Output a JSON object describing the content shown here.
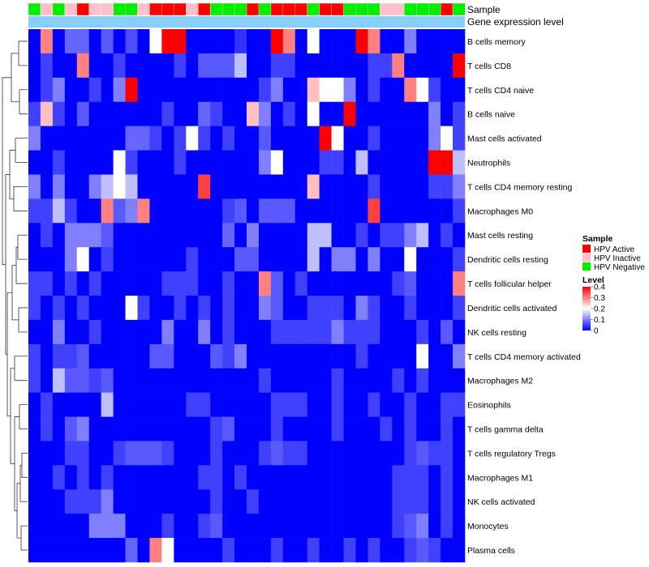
{
  "chart_data": {
    "type": "heatmap",
    "rows": [
      "B cells memory",
      "T cells CD8",
      "T cells CD4 naive",
      "B cells naive",
      "Mast cells activated",
      "Neutrophils",
      "T cells CD4 memory resting",
      "Macrophages M0",
      "Mast cells resting",
      "Dendritic cells resting",
      "T cells follicular helper",
      "Dendritic cells activated",
      "NK cells resting",
      "T cells CD4 memory activated",
      "Macrophages M2",
      "Eosinophils",
      "T cells gamma delta",
      "T cells regulatory  Tregs",
      "Macrophages M1",
      "NK cells activated",
      "Monocytes",
      "Plasma cells"
    ],
    "column_annotations": [
      {
        "name": "Sample",
        "categories": [
          "HPV Active",
          "HPV Inactive",
          "HPV Negative"
        ],
        "colors": [
          "#ff0000",
          "#ffc0cb",
          "#00ee00"
        ]
      },
      {
        "name": "Gene expression level",
        "color": "#87cefa"
      }
    ],
    "sample_groups": [
      "N",
      "I",
      "N",
      "I",
      "A",
      "I",
      "I",
      "N",
      "N",
      "I",
      "A",
      "A",
      "A",
      "I",
      "A",
      "N",
      "N",
      "N",
      "A",
      "N",
      "A",
      "A",
      "A",
      "N",
      "A",
      "A",
      "N",
      "N",
      "N",
      "I",
      "I",
      "N",
      "N",
      "N",
      "A",
      "N"
    ],
    "values": [
      [
        0.0,
        0.3,
        0.0,
        0.08,
        0.08,
        0.0,
        0.07,
        0.0,
        0.06,
        0.0,
        0.2,
        0.4,
        0.4,
        0.0,
        0.0,
        0.0,
        0.0,
        0.04,
        0.0,
        0.0,
        0.4,
        0.3,
        0.0,
        0.2,
        0.0,
        0.0,
        0.0,
        0.4,
        0.3,
        0.0,
        0.0,
        0.1,
        0.0,
        0.0,
        0.0,
        0.0
      ],
      [
        0.0,
        0.05,
        0.0,
        0.0,
        0.3,
        0.0,
        0.0,
        0.05,
        0.0,
        0.0,
        0.0,
        0.0,
        0.05,
        0.0,
        0.07,
        0.07,
        0.07,
        0.15,
        0.0,
        0.0,
        0.05,
        0.05,
        0.0,
        0.0,
        0.0,
        0.0,
        0.0,
        0.0,
        0.05,
        0.05,
        0.3,
        0.0,
        0.0,
        0.0,
        0.0,
        0.4
      ],
      [
        0.0,
        0.05,
        0.1,
        0.0,
        0.0,
        0.05,
        0.0,
        0.1,
        0.4,
        0.0,
        0.0,
        0.0,
        0.0,
        0.0,
        0.0,
        0.0,
        0.0,
        0.0,
        0.0,
        0.05,
        0.1,
        0.0,
        0.0,
        0.25,
        0.2,
        0.2,
        0.1,
        0.0,
        0.05,
        0.0,
        0.0,
        0.3,
        0.2,
        0.05,
        0.0,
        0.0
      ],
      [
        0.05,
        0.25,
        0.05,
        0.0,
        0.07,
        0.0,
        0.0,
        0.0,
        0.0,
        0.0,
        0.0,
        0.05,
        0.0,
        0.0,
        0.08,
        0.05,
        0.0,
        0.0,
        0.25,
        0.1,
        0.0,
        0.05,
        0.0,
        0.2,
        0.0,
        0.0,
        0.4,
        0.0,
        0.0,
        0.0,
        0.0,
        0.0,
        0.0,
        0.1,
        0.0,
        0.05
      ],
      [
        0.1,
        0.0,
        0.0,
        0.0,
        0.0,
        0.0,
        0.0,
        0.0,
        0.08,
        0.08,
        0.05,
        0.0,
        0.05,
        0.2,
        0.05,
        0.0,
        0.05,
        0.0,
        0.0,
        0.07,
        0.0,
        0.0,
        0.0,
        0.0,
        0.4,
        0.2,
        0.0,
        0.0,
        0.05,
        0.0,
        0.0,
        0.0,
        0.0,
        0.1,
        0.2,
        0.05
      ],
      [
        0.0,
        0.0,
        0.05,
        0.0,
        0.0,
        0.0,
        0.0,
        0.2,
        0.05,
        0.0,
        0.0,
        0.0,
        0.05,
        0.0,
        0.0,
        0.0,
        0.0,
        0.0,
        0.0,
        0.1,
        0.2,
        0.0,
        0.0,
        0.0,
        0.05,
        0.05,
        0.0,
        0.15,
        0.0,
        0.0,
        0.0,
        0.0,
        0.0,
        0.4,
        0.4,
        0.15
      ],
      [
        0.1,
        0.0,
        0.1,
        0.0,
        0.0,
        0.1,
        0.15,
        0.2,
        0.15,
        0.0,
        0.0,
        0.0,
        0.0,
        0.0,
        0.35,
        0.0,
        0.0,
        0.0,
        0.0,
        0.0,
        0.0,
        0.0,
        0.0,
        0.25,
        0.0,
        0.0,
        0.0,
        0.0,
        0.05,
        0.0,
        0.0,
        0.0,
        0.0,
        0.05,
        0.05,
        0.1
      ],
      [
        0.05,
        0.05,
        0.15,
        0.05,
        0.0,
        0.0,
        0.3,
        0.07,
        0.1,
        0.3,
        0.0,
        0.0,
        0.0,
        0.0,
        0.0,
        0.0,
        0.05,
        0.07,
        0.0,
        0.07,
        0.07,
        0.07,
        0.0,
        0.0,
        0.0,
        0.0,
        0.0,
        0.0,
        0.35,
        0.0,
        0.0,
        0.0,
        0.0,
        0.0,
        0.0,
        0.05
      ],
      [
        0.0,
        0.05,
        0.0,
        0.1,
        0.1,
        0.1,
        0.07,
        0.0,
        0.0,
        0.0,
        0.0,
        0.0,
        0.0,
        0.0,
        0.0,
        0.0,
        0.08,
        0.0,
        0.1,
        0.0,
        0.0,
        0.0,
        0.0,
        0.15,
        0.15,
        0.0,
        0.0,
        0.05,
        0.0,
        0.05,
        0.05,
        0.1,
        0.15,
        0.0,
        0.05,
        0.0
      ],
      [
        0.0,
        0.0,
        0.0,
        0.1,
        0.2,
        0.0,
        0.05,
        0.0,
        0.0,
        0.0,
        0.0,
        0.0,
        0.0,
        0.05,
        0.0,
        0.0,
        0.0,
        0.07,
        0.07,
        0.0,
        0.0,
        0.0,
        0.0,
        0.15,
        0.0,
        0.1,
        0.1,
        0.0,
        0.1,
        0.0,
        0.0,
        0.2,
        0.0,
        0.0,
        0.0,
        0.05
      ],
      [
        0.05,
        0.05,
        0.0,
        0.05,
        0.0,
        0.05,
        0.0,
        0.0,
        0.0,
        0.0,
        0.0,
        0.05,
        0.05,
        0.05,
        0.0,
        0.0,
        0.05,
        0.0,
        0.0,
        0.3,
        0.07,
        0.0,
        0.05,
        0.0,
        0.0,
        0.0,
        0.0,
        0.0,
        0.0,
        0.0,
        0.05,
        0.07,
        0.0,
        0.0,
        0.0,
        0.3
      ],
      [
        0.05,
        0.0,
        0.05,
        0.0,
        0.05,
        0.0,
        0.0,
        0.0,
        0.2,
        0.05,
        0.0,
        0.0,
        0.05,
        0.0,
        0.05,
        0.0,
        0.05,
        0.0,
        0.0,
        0.1,
        0.07,
        0.0,
        0.0,
        0.05,
        0.05,
        0.05,
        0.0,
        0.1,
        0.05,
        0.0,
        0.0,
        0.05,
        0.0,
        0.0,
        0.0,
        0.05
      ],
      [
        0.0,
        0.0,
        0.1,
        0.0,
        0.0,
        0.05,
        0.0,
        0.0,
        0.0,
        0.0,
        0.0,
        0.1,
        0.0,
        0.0,
        0.1,
        0.0,
        0.05,
        0.0,
        0.0,
        0.0,
        0.05,
        0.05,
        0.05,
        0.05,
        0.05,
        0.1,
        0.05,
        0.05,
        0.05,
        0.0,
        0.0,
        0.0,
        0.05,
        0.0,
        0.07,
        0.0
      ],
      [
        0.05,
        0.0,
        0.05,
        0.05,
        0.07,
        0.0,
        0.0,
        0.0,
        0.0,
        0.0,
        0.07,
        0.07,
        0.0,
        0.0,
        0.0,
        0.07,
        0.05,
        0.1,
        0.0,
        0.0,
        0.0,
        0.0,
        0.0,
        0.0,
        0.0,
        0.0,
        0.0,
        0.05,
        0.0,
        0.0,
        0.0,
        0.0,
        0.2,
        0.0,
        0.0,
        0.1
      ],
      [
        0.05,
        0.0,
        0.15,
        0.07,
        0.07,
        0.05,
        0.07,
        0.0,
        0.0,
        0.0,
        0.0,
        0.0,
        0.0,
        0.0,
        0.0,
        0.0,
        0.0,
        0.0,
        0.0,
        0.05,
        0.0,
        0.0,
        0.0,
        0.0,
        0.0,
        0.05,
        0.0,
        0.0,
        0.0,
        0.0,
        0.05,
        0.0,
        0.05,
        0.0,
        0.0,
        0.0
      ],
      [
        0.0,
        0.05,
        0.0,
        0.0,
        0.0,
        0.0,
        0.15,
        0.0,
        0.0,
        0.0,
        0.0,
        0.0,
        0.0,
        0.05,
        0.05,
        0.0,
        0.0,
        0.0,
        0.0,
        0.0,
        0.05,
        0.05,
        0.05,
        0.0,
        0.0,
        0.05,
        0.0,
        0.0,
        0.05,
        0.0,
        0.0,
        0.05,
        0.0,
        0.0,
        0.05,
        0.05
      ],
      [
        0.0,
        0.05,
        0.0,
        0.07,
        0.1,
        0.0,
        0.0,
        0.0,
        0.0,
        0.0,
        0.0,
        0.0,
        0.0,
        0.0,
        0.0,
        0.05,
        0.07,
        0.0,
        0.0,
        0.0,
        0.05,
        0.0,
        0.0,
        0.0,
        0.0,
        0.05,
        0.0,
        0.0,
        0.0,
        0.05,
        0.0,
        0.05,
        0.0,
        0.0,
        0.05,
        0.0
      ],
      [
        0.0,
        0.0,
        0.0,
        0.05,
        0.05,
        0.0,
        0.0,
        0.05,
        0.07,
        0.07,
        0.07,
        0.05,
        0.0,
        0.0,
        0.0,
        0.05,
        0.0,
        0.0,
        0.0,
        0.05,
        0.07,
        0.05,
        0.05,
        0.0,
        0.0,
        0.0,
        0.0,
        0.0,
        0.0,
        0.0,
        0.0,
        0.05,
        0.07,
        0.05,
        0.05,
        0.0
      ],
      [
        0.0,
        0.0,
        0.05,
        0.0,
        0.05,
        0.0,
        0.05,
        0.0,
        0.0,
        0.0,
        0.0,
        0.0,
        0.0,
        0.0,
        0.05,
        0.05,
        0.0,
        0.05,
        0.0,
        0.0,
        0.0,
        0.0,
        0.0,
        0.0,
        0.0,
        0.0,
        0.0,
        0.0,
        0.0,
        0.0,
        0.05,
        0.05,
        0.05,
        0.0,
        0.05,
        0.0
      ],
      [
        0.0,
        0.0,
        0.0,
        0.05,
        0.05,
        0.05,
        0.1,
        0.0,
        0.0,
        0.0,
        0.0,
        0.0,
        0.0,
        0.0,
        0.0,
        0.05,
        0.0,
        0.0,
        0.05,
        0.0,
        0.0,
        0.0,
        0.0,
        0.0,
        0.0,
        0.0,
        0.0,
        0.0,
        0.0,
        0.0,
        0.05,
        0.05,
        0.05,
        0.0,
        0.05,
        0.0
      ],
      [
        0.0,
        0.0,
        0.0,
        0.0,
        0.0,
        0.1,
        0.1,
        0.1,
        0.0,
        0.0,
        0.0,
        0.05,
        0.0,
        0.0,
        0.05,
        0.07,
        0.0,
        0.0,
        0.0,
        0.0,
        0.0,
        0.0,
        0.0,
        0.0,
        0.0,
        0.0,
        0.0,
        0.0,
        0.0,
        0.0,
        0.05,
        0.07,
        0.1,
        0.0,
        0.05,
        0.0
      ],
      [
        0.0,
        0.0,
        0.0,
        0.0,
        0.0,
        0.0,
        0.0,
        0.0,
        0.08,
        0.0,
        0.3,
        0.2,
        0.0,
        0.0,
        0.0,
        0.0,
        0.05,
        0.0,
        0.0,
        0.0,
        0.05,
        0.0,
        0.0,
        0.05,
        0.0,
        0.0,
        0.05,
        0.0,
        0.05,
        0.0,
        0.0,
        0.05,
        0.07,
        0.05,
        0.0,
        0.0
      ]
    ],
    "color_scale": {
      "low": "#0000ff",
      "mid": "#ffffff",
      "high": "#ff0000",
      "min": 0,
      "max": 0.4,
      "midpoint": 0.2
    },
    "legend": {
      "sample_title": "Sample",
      "level_title": "Level",
      "level_ticks": [
        0.4,
        0.3,
        0.2,
        0.1,
        0
      ],
      "placement": "right"
    }
  }
}
